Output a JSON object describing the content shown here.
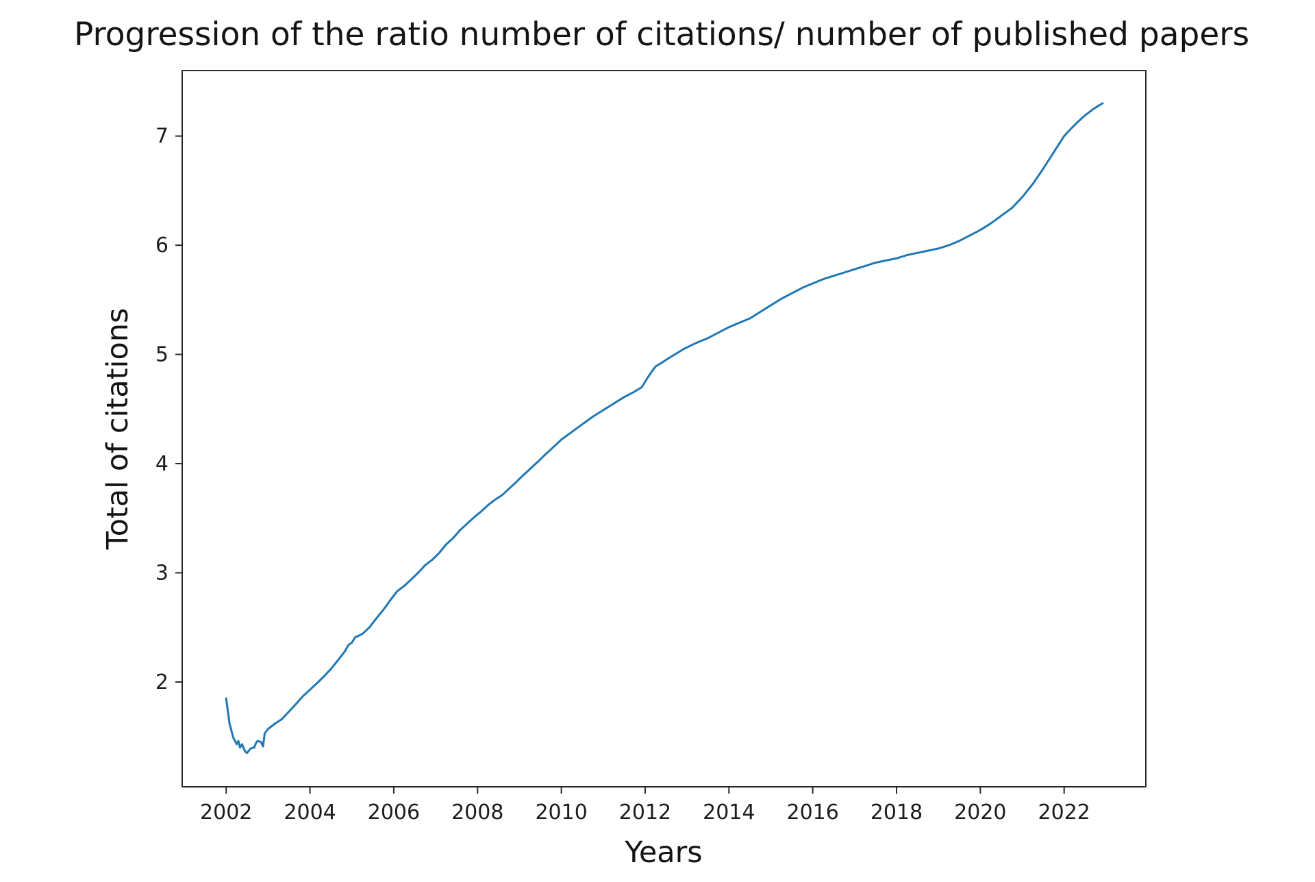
{
  "figure": {
    "background_color": "#ffffff",
    "title": "Progression of the ratio number of citations/ number of published papers"
  },
  "colors": {
    "line": "#1f77b4",
    "axis": "#2a2a2a",
    "text": "#141414"
  },
  "chart_data": {
    "type": "line",
    "title": "Progression of the ratio number of citations/ number of published papers",
    "xlabel": "Years",
    "ylabel": "Total of citations",
    "xlim": [
      2000.95,
      2023.95
    ],
    "ylim": [
      1.04,
      7.6
    ],
    "x_ticks": [
      2002,
      2004,
      2006,
      2008,
      2010,
      2012,
      2014,
      2016,
      2018,
      2020,
      2022
    ],
    "y_ticks": [
      2,
      3,
      4,
      5,
      6,
      7
    ],
    "grid": false,
    "legend": "none",
    "line_color": "#1f77b4",
    "x": [
      2002.0,
      2002.08,
      2002.17,
      2002.25,
      2002.29,
      2002.33,
      2002.38,
      2002.42,
      2002.46,
      2002.5,
      2002.58,
      2002.67,
      2002.71,
      2002.75,
      2002.83,
      2002.88,
      2002.92,
      2003.0,
      2003.17,
      2003.33,
      2003.5,
      2003.67,
      2003.83,
      2004.0,
      2004.17,
      2004.33,
      2004.5,
      2004.67,
      2004.83,
      2004.92,
      2005.0,
      2005.08,
      2005.25,
      2005.42,
      2005.58,
      2005.75,
      2005.92,
      2006.08,
      2006.25,
      2006.42,
      2006.58,
      2006.75,
      2006.92,
      2007.08,
      2007.25,
      2007.42,
      2007.58,
      2007.75,
      2007.92,
      2008.08,
      2008.25,
      2008.42,
      2008.58,
      2008.75,
      2008.92,
      2009.08,
      2009.25,
      2009.42,
      2009.58,
      2009.75,
      2009.92,
      2010.0,
      2010.25,
      2010.5,
      2010.75,
      2011.0,
      2011.25,
      2011.5,
      2011.75,
      2011.92,
      2012.0,
      2012.08,
      2012.17,
      2012.25,
      2012.42,
      2012.58,
      2012.75,
      2012.92,
      2013.08,
      2013.25,
      2013.5,
      2013.75,
      2014.0,
      2014.25,
      2014.5,
      2014.75,
      2015.0,
      2015.25,
      2015.5,
      2015.75,
      2016.0,
      2016.25,
      2016.5,
      2016.75,
      2017.0,
      2017.25,
      2017.5,
      2017.75,
      2018.0,
      2018.25,
      2018.5,
      2018.75,
      2019.0,
      2019.25,
      2019.5,
      2019.75,
      2020.0,
      2020.25,
      2020.5,
      2020.75,
      2021.0,
      2021.25,
      2021.5,
      2021.75,
      2022.0,
      2022.17,
      2022.33,
      2022.5,
      2022.67,
      2022.83,
      2022.92
    ],
    "y": [
      1.85,
      1.62,
      1.49,
      1.43,
      1.46,
      1.4,
      1.43,
      1.39,
      1.36,
      1.35,
      1.39,
      1.4,
      1.44,
      1.46,
      1.45,
      1.41,
      1.53,
      1.57,
      1.62,
      1.66,
      1.73,
      1.8,
      1.87,
      1.93,
      1.99,
      2.05,
      2.12,
      2.2,
      2.28,
      2.34,
      2.36,
      2.41,
      2.44,
      2.5,
      2.58,
      2.66,
      2.75,
      2.83,
      2.88,
      2.94,
      3.0,
      3.07,
      3.12,
      3.18,
      3.26,
      3.32,
      3.39,
      3.45,
      3.51,
      3.56,
      3.62,
      3.67,
      3.71,
      3.77,
      3.83,
      3.89,
      3.95,
      4.01,
      4.07,
      4.13,
      4.19,
      4.22,
      4.29,
      4.36,
      4.43,
      4.49,
      4.55,
      4.61,
      4.66,
      4.7,
      4.75,
      4.8,
      4.85,
      4.89,
      4.93,
      4.97,
      5.01,
      5.05,
      5.08,
      5.11,
      5.15,
      5.2,
      5.25,
      5.29,
      5.33,
      5.39,
      5.45,
      5.51,
      5.56,
      5.61,
      5.65,
      5.69,
      5.72,
      5.75,
      5.78,
      5.81,
      5.84,
      5.86,
      5.88,
      5.91,
      5.93,
      5.95,
      5.97,
      6.0,
      6.04,
      6.09,
      6.14,
      6.2,
      6.27,
      6.34,
      6.44,
      6.56,
      6.7,
      6.85,
      7.0,
      7.07,
      7.13,
      7.19,
      7.24,
      7.28,
      7.3
    ]
  }
}
